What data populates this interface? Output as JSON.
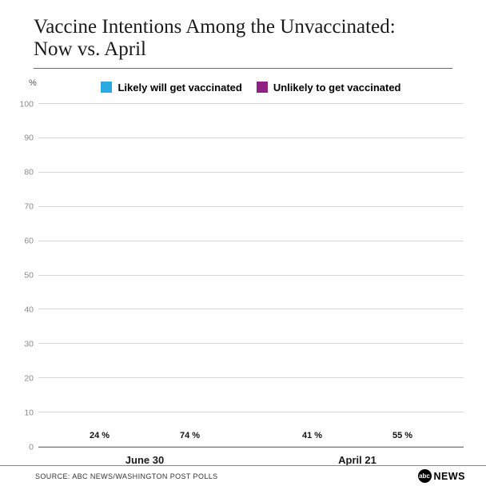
{
  "title": {
    "line1": "Vaccine Intentions Among the Unvaccinated:",
    "line2": "Now vs. April"
  },
  "footer": {
    "source": "SOURCE: ABC NEWS/WASHINGTON POST POLLS",
    "logo_abc": "abc",
    "logo_news": "NEWS"
  },
  "chart_data": {
    "type": "bar",
    "title": "Vaccine Intentions Among the Unvaccinated: Now vs. April",
    "categories": [
      "June 30",
      "April 21"
    ],
    "series": [
      {
        "name": "Likely will get vaccinated",
        "color": "#2ca9e1",
        "values": [
          24,
          41
        ]
      },
      {
        "name": "Unlikely to get vaccinated",
        "color": "#8e2181",
        "values": [
          74,
          55
        ]
      }
    ],
    "value_label_suffix": " %",
    "ylabel": "%",
    "ylim": [
      0,
      100
    ],
    "yticks": [
      0,
      10,
      20,
      30,
      40,
      50,
      60,
      70,
      80,
      90,
      100
    ],
    "grid": true,
    "legend_position": "top"
  }
}
